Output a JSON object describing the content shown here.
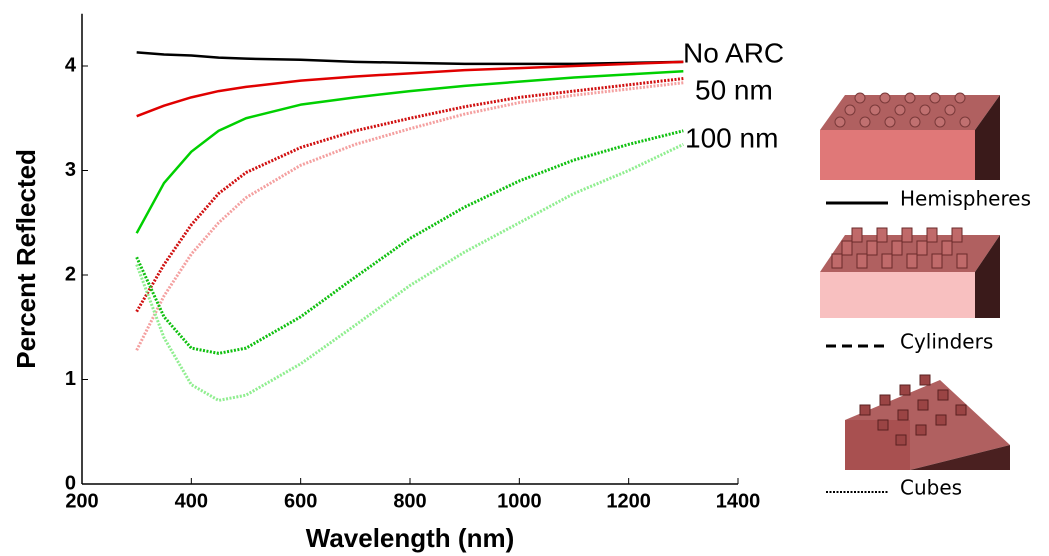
{
  "chart_data": {
    "type": "line",
    "x_label": "Wavelength (nm)",
    "y_label": "Percent Reflected",
    "xlim": [
      200,
      1400
    ],
    "xticks": [
      200,
      400,
      600,
      800,
      1000,
      1200,
      1400
    ],
    "ylim": [
      0,
      4.5
    ],
    "yticks": [
      0,
      1,
      2,
      3,
      4
    ],
    "x": [
      300,
      350,
      400,
      450,
      500,
      600,
      700,
      800,
      900,
      1000,
      1100,
      1200,
      1300
    ],
    "series": [
      {
        "color": "#000000",
        "dash": "solid",
        "values": [
          4.13,
          4.11,
          4.1,
          4.08,
          4.07,
          4.06,
          4.04,
          4.03,
          4.02,
          4.02,
          4.02,
          4.03,
          4.04
        ]
      },
      {
        "color": "#e00000",
        "dash": "solid",
        "values": [
          3.52,
          3.62,
          3.7,
          3.76,
          3.8,
          3.86,
          3.9,
          3.93,
          3.96,
          3.98,
          4.0,
          4.02,
          4.04
        ]
      },
      {
        "color": "#00d000",
        "dash": "solid",
        "values": [
          2.4,
          2.88,
          3.18,
          3.38,
          3.5,
          3.63,
          3.7,
          3.76,
          3.81,
          3.85,
          3.89,
          3.92,
          3.95
        ]
      },
      {
        "color": "#d01010",
        "dash": "dotted",
        "values": [
          1.65,
          2.1,
          2.48,
          2.78,
          2.98,
          3.22,
          3.38,
          3.5,
          3.61,
          3.7,
          3.76,
          3.82,
          3.88
        ]
      },
      {
        "color": "#f4a0a0",
        "dash": "dotted",
        "values": [
          1.28,
          1.8,
          2.2,
          2.5,
          2.74,
          3.05,
          3.25,
          3.4,
          3.54,
          3.65,
          3.72,
          3.78,
          3.84
        ]
      },
      {
        "color": "#10c010",
        "dash": "dotted",
        "values": [
          2.17,
          1.6,
          1.3,
          1.25,
          1.3,
          1.6,
          1.98,
          2.35,
          2.65,
          2.9,
          3.1,
          3.25,
          3.38
        ]
      },
      {
        "color": "#90ee90",
        "dash": "dotted",
        "values": [
          2.1,
          1.4,
          0.95,
          0.8,
          0.85,
          1.15,
          1.52,
          1.9,
          2.22,
          2.5,
          2.78,
          3.0,
          3.25
        ]
      }
    ],
    "annotations": [
      "No ARC",
      "50 nm",
      "100 nm"
    ],
    "legend": [
      {
        "label": "Hemispheres",
        "dash": "solid"
      },
      {
        "label": "Cylinders",
        "dash": "dashed"
      },
      {
        "label": "Cubes",
        "dash": "dotted"
      }
    ]
  }
}
